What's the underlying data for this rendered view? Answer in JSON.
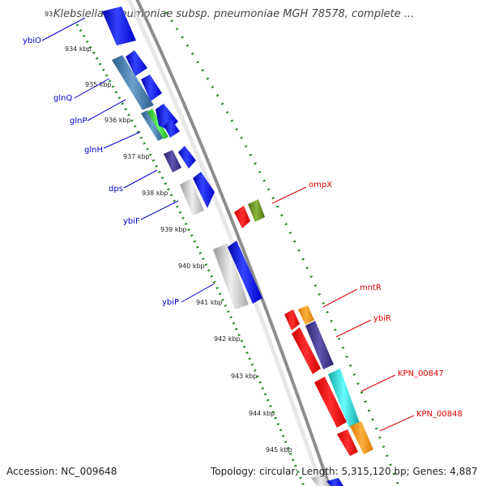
{
  "title": "Klebsiella pneumoniae subsp. pneumoniae MGH 78578, complete ...",
  "footer": {
    "accession": "Accession: NC_009648",
    "summary": "Topology: circular; Length: 5,315,120 bp; Genes: 4,887"
  },
  "colors": {
    "backbone": "#999999",
    "tick": "#228822",
    "label_left": "#0000cc",
    "label_right": "#dd0000"
  },
  "ruler_labels": [
    "934 kbp",
    "935 kbp",
    "936 kbp",
    "937 kbp",
    "938 kbp",
    "939 kbp",
    "940 kbp",
    "941 kbp",
    "942 kbp",
    "943 kbp",
    "944 kbp",
    "945 kbp"
  ],
  "left_genes": [
    "ybiO",
    "glnQ",
    "glnP",
    "glnH",
    "dps",
    "ybiF",
    "ybiP"
  ],
  "right_genes": [
    "ompX",
    "mntR",
    "ybiR",
    "KPN_00847",
    "KPN_00848"
  ]
}
